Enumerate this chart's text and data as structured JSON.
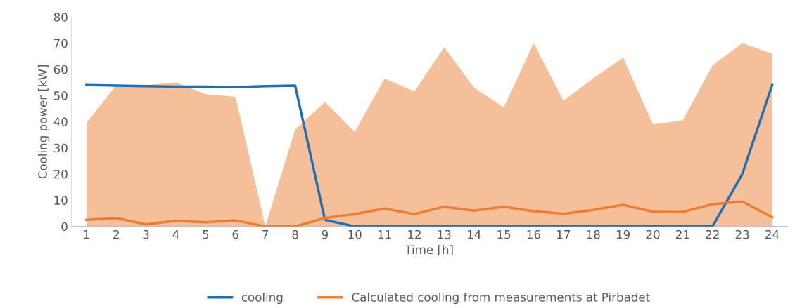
{
  "chart_data": {
    "type": "line",
    "xlabel": "Time [h]",
    "ylabel": "Cooling power [kW]",
    "categories": [
      "1",
      "2",
      "3",
      "4",
      "5",
      "6",
      "7",
      "8",
      "9",
      "10",
      "11",
      "12",
      "13",
      "14",
      "15",
      "16",
      "17",
      "18",
      "19",
      "20",
      "21",
      "22",
      "23",
      "24"
    ],
    "ylim": [
      0,
      80
    ],
    "yticks": [
      0,
      10,
      20,
      30,
      40,
      50,
      60,
      70,
      80
    ],
    "grid": false,
    "legend": "bottom",
    "series": [
      {
        "type": "area",
        "color": "#f5bf99",
        "values": [
          39.5,
          54,
          54,
          55,
          50.5,
          49.5,
          0,
          37,
          47.5,
          36,
          56.5,
          51.5,
          68.5,
          53,
          45.5,
          70,
          48,
          56.5,
          64.5,
          39,
          40.5,
          61.5,
          70,
          66
        ]
      },
      {
        "name": "cooling",
        "color": "#1f6fb4",
        "values": [
          54,
          53.8,
          53.6,
          53.4,
          53.4,
          53.2,
          53.6,
          53.8,
          2.5,
          0,
          0,
          0,
          0,
          0,
          0,
          0,
          0,
          0,
          0,
          0,
          0,
          0,
          20,
          54
        ]
      },
      {
        "name": "Calculated cooling from measurements at Pirbadet",
        "color": "#ed7d31",
        "values": [
          2.5,
          3.2,
          0.8,
          2.2,
          1.6,
          2.3,
          0,
          0,
          3.2,
          4.7,
          6.8,
          4.7,
          7.5,
          6,
          7.5,
          5.8,
          4.8,
          6.3,
          8.2,
          5.6,
          5.5,
          8.5,
          9.5,
          3.5
        ]
      }
    ]
  }
}
